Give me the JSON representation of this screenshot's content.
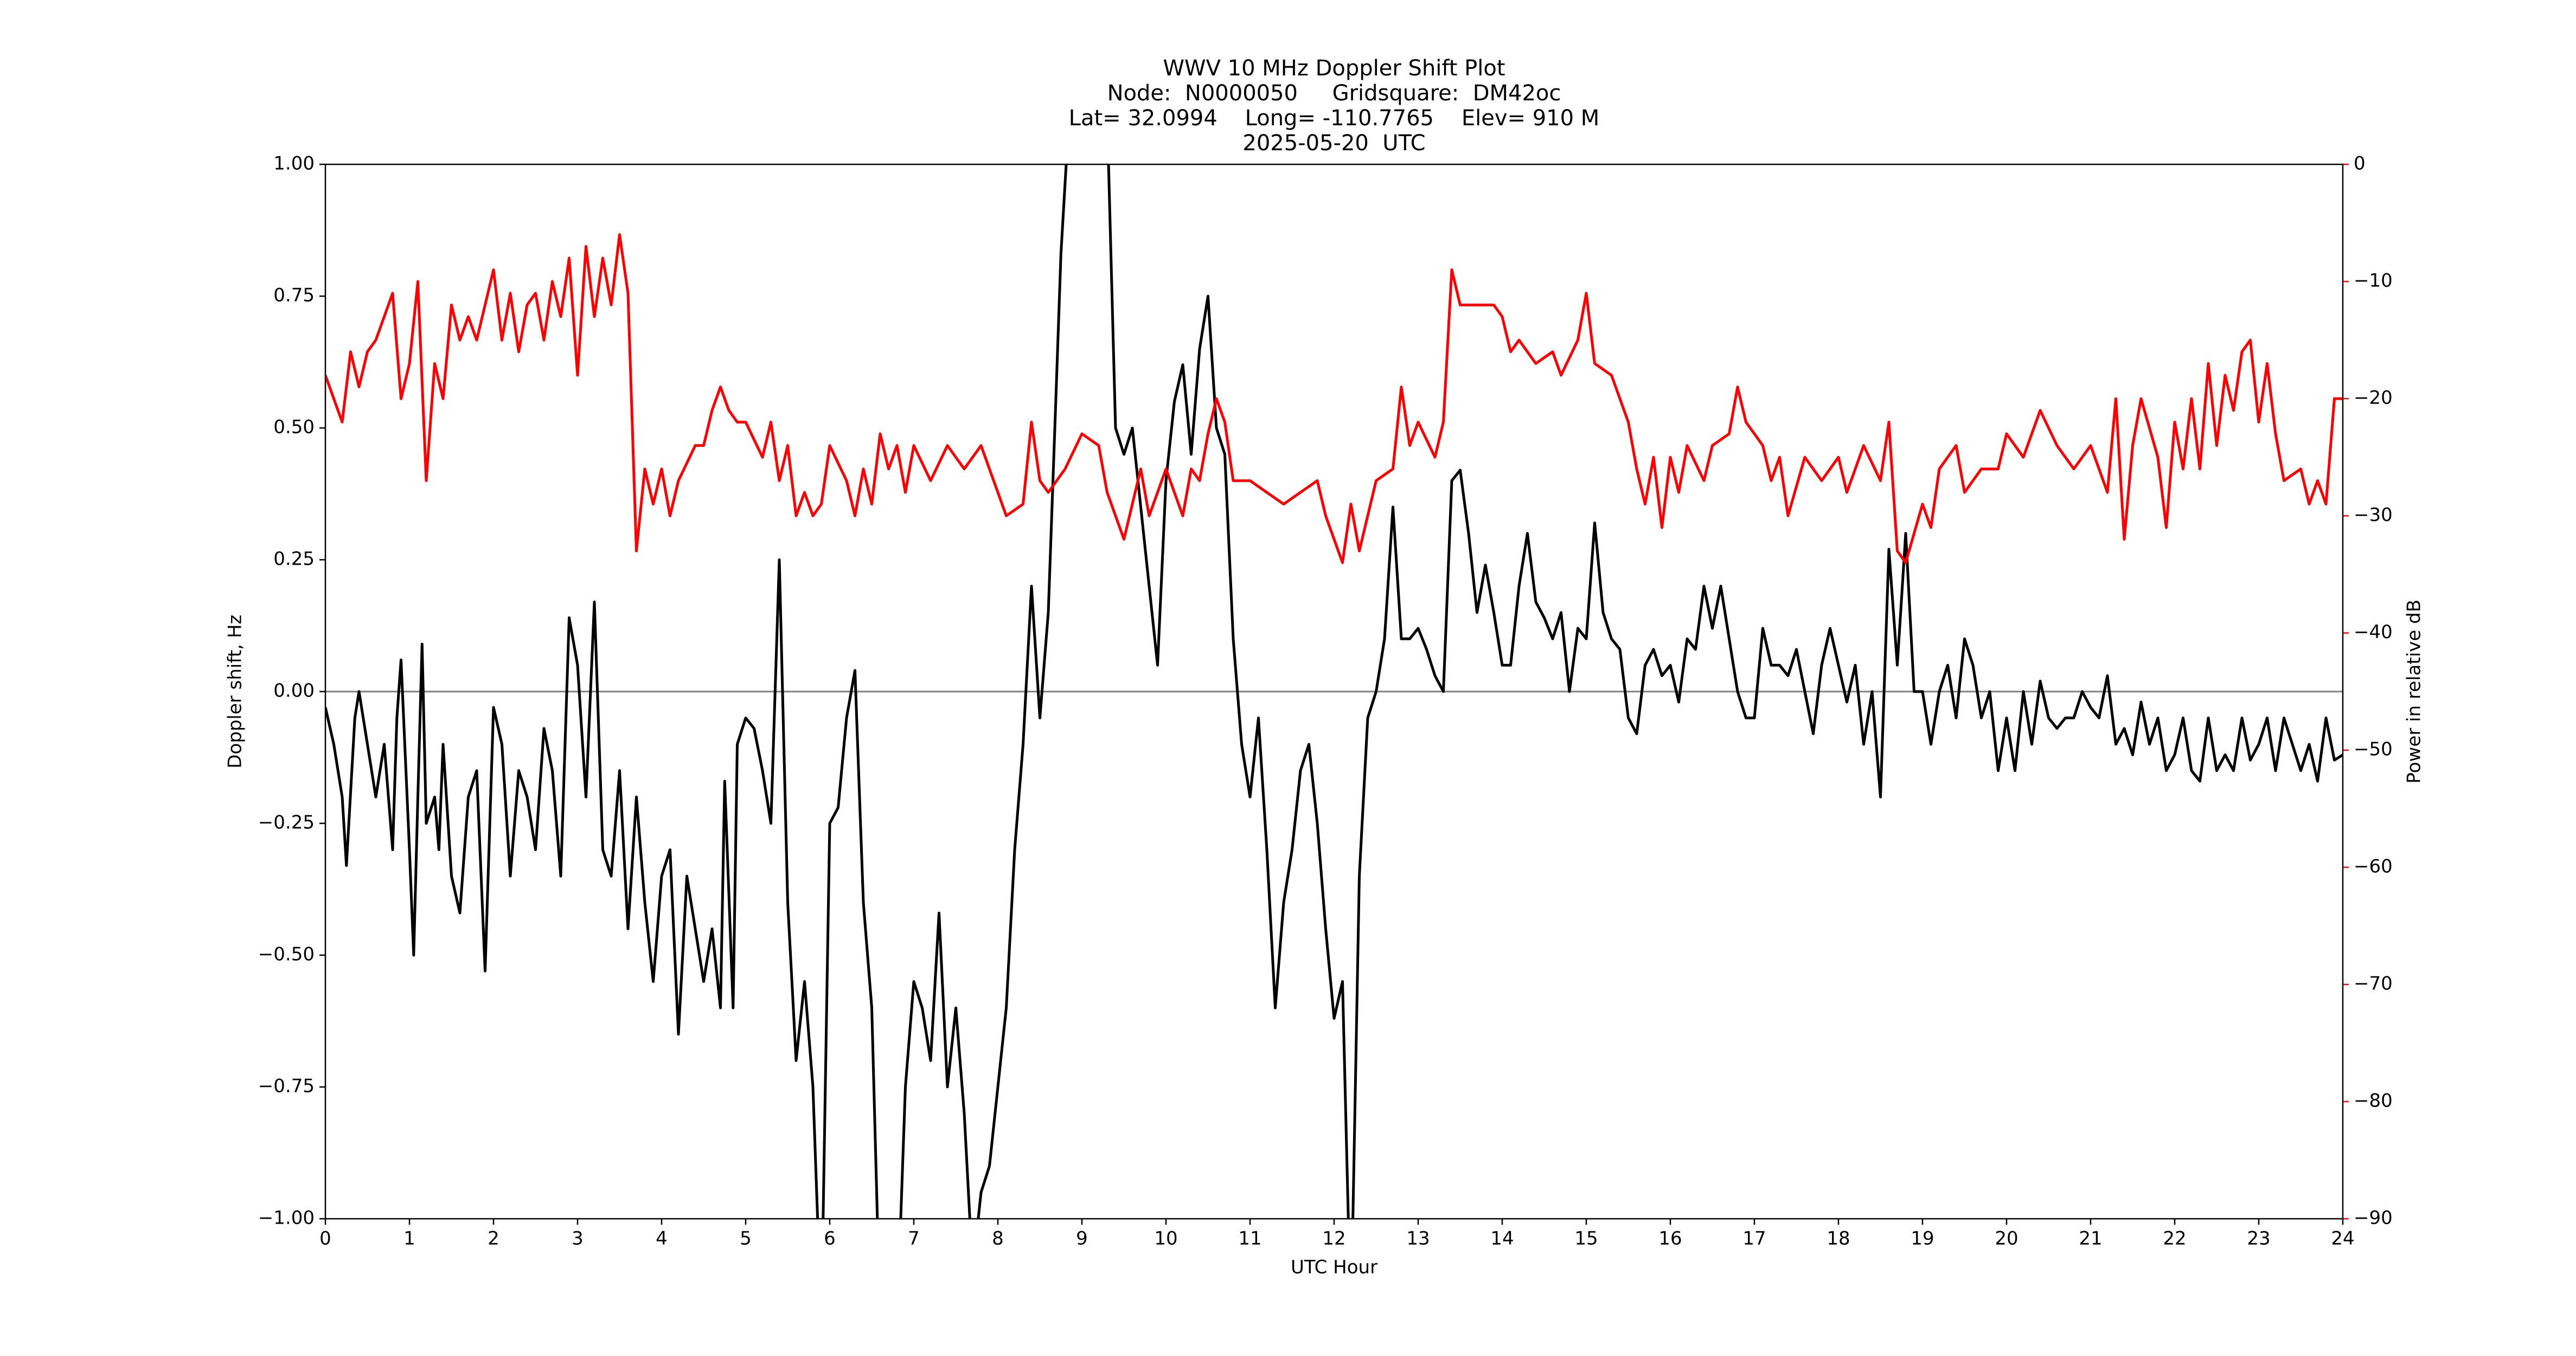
{
  "chart_data": {
    "type": "line",
    "title": [
      "WWV 10 MHz Doppler Shift Plot",
      "Node:  N0000050     Gridsquare:  DM42oc",
      "Lat= 32.0994    Long= -110.7765    Elev= 910 M",
      "2025-05-20  UTC"
    ],
    "x_label": "UTC Hour",
    "y_label": "Doppler shift, Hz",
    "y2_label": "Power in relative dB",
    "xlim": [
      0,
      24
    ],
    "xticks": [
      0,
      1,
      2,
      3,
      4,
      5,
      6,
      7,
      8,
      9,
      10,
      11,
      12,
      13,
      14,
      15,
      16,
      17,
      18,
      19,
      20,
      21,
      22,
      23,
      24
    ],
    "ylim": [
      -1,
      1
    ],
    "yticks": [
      {
        "value": -1,
        "label": "−1.00"
      },
      {
        "value": -0.75,
        "label": "−0.75"
      },
      {
        "value": -0.5,
        "label": "−0.50"
      },
      {
        "value": -0.25,
        "label": "−0.25"
      },
      {
        "value": 0,
        "label": "0.00"
      },
      {
        "value": 0.25,
        "label": "0.25"
      },
      {
        "value": 0.5,
        "label": "0.50"
      },
      {
        "value": 0.75,
        "label": "0.75"
      },
      {
        "value": 1,
        "label": "1.00"
      }
    ],
    "y2lim": [
      -90,
      0
    ],
    "y2ticks": [
      {
        "value": -90,
        "label": "−90"
      },
      {
        "value": -80,
        "label": "−80"
      },
      {
        "value": -70,
        "label": "−70"
      },
      {
        "value": -60,
        "label": "−60"
      },
      {
        "value": -50,
        "label": "−50"
      },
      {
        "value": -40,
        "label": "−40"
      },
      {
        "value": -30,
        "label": "−30"
      },
      {
        "value": -20,
        "label": "−20"
      },
      {
        "value": -10,
        "label": "−10"
      },
      0
    ],
    "y2_color": "#ff0000",
    "hline": 0,
    "series": [
      {
        "name": "Doppler shift",
        "color": "#000000",
        "axis": "y",
        "x": [
          0,
          0.1,
          0.2,
          0.25,
          0.35,
          0.4,
          0.5,
          0.6,
          0.7,
          0.8,
          0.85,
          0.9,
          1.0,
          1.05,
          1.1,
          1.15,
          1.2,
          1.3,
          1.35,
          1.4,
          1.5,
          1.6,
          1.7,
          1.8,
          1.9,
          2.0,
          2.1,
          2.2,
          2.3,
          2.4,
          2.5,
          2.6,
          2.7,
          2.8,
          2.9,
          3.0,
          3.1,
          3.2,
          3.3,
          3.4,
          3.5,
          3.6,
          3.7,
          3.8,
          3.9,
          4.0,
          4.1,
          4.2,
          4.3,
          4.4,
          4.5,
          4.6,
          4.7,
          4.75,
          4.85,
          4.9,
          5.0,
          5.1,
          5.2,
          5.3,
          5.4,
          5.5,
          5.6,
          5.7,
          5.8,
          5.9,
          6.0,
          6.1,
          6.2,
          6.3,
          6.4,
          6.5,
          6.6,
          6.8,
          6.9,
          7.0,
          7.1,
          7.2,
          7.3,
          7.4,
          7.5,
          7.6,
          7.7,
          7.8,
          7.9,
          8.0,
          8.1,
          8.2,
          8.3,
          8.4,
          8.5,
          8.6,
          8.7,
          8.75,
          8.85,
          9.0,
          9.3,
          9.4,
          9.5,
          9.6,
          9.7,
          9.8,
          9.9,
          10.0,
          10.1,
          10.2,
          10.3,
          10.4,
          10.5,
          10.6,
          10.7,
          10.8,
          10.9,
          11.0,
          11.1,
          11.2,
          11.3,
          11.4,
          11.5,
          11.6,
          11.7,
          11.8,
          11.9,
          12.0,
          12.1,
          12.2,
          12.3,
          12.4,
          12.5,
          12.6,
          12.7,
          12.8,
          12.9,
          13.0,
          13.1,
          13.2,
          13.3,
          13.4,
          13.5,
          13.6,
          13.7,
          13.8,
          13.9,
          14.0,
          14.1,
          14.2,
          14.3,
          14.4,
          14.5,
          14.6,
          14.7,
          14.8,
          14.9,
          15.0,
          15.1,
          15.2,
          15.3,
          15.4,
          15.5,
          15.6,
          15.7,
          15.8,
          15.9,
          16.0,
          16.1,
          16.2,
          16.3,
          16.4,
          16.5,
          16.6,
          16.7,
          16.8,
          16.9,
          17.0,
          17.1,
          17.2,
          17.3,
          17.4,
          17.5,
          17.6,
          17.7,
          17.8,
          17.9,
          18.0,
          18.1,
          18.2,
          18.3,
          18.4,
          18.5,
          18.6,
          18.7,
          18.8,
          18.9,
          19.0,
          19.1,
          19.2,
          19.3,
          19.4,
          19.5,
          19.6,
          19.7,
          19.8,
          19.9,
          20.0,
          20.1,
          20.2,
          20.3,
          20.4,
          20.5,
          20.6,
          20.7,
          20.8,
          20.9,
          21.0,
          21.1,
          21.2,
          21.3,
          21.4,
          21.5,
          21.6,
          21.7,
          21.8,
          21.9,
          22.0,
          22.1,
          22.2,
          22.3,
          22.4,
          22.5,
          22.6,
          22.7,
          22.8,
          22.9,
          23.0,
          23.1,
          23.2,
          23.3,
          23.4,
          23.5,
          23.6,
          23.7,
          23.8,
          23.9,
          24.0
        ],
        "values": [
          -0.03,
          -0.1,
          -0.2,
          -0.33,
          -0.05,
          0.0,
          -0.1,
          -0.2,
          -0.1,
          -0.3,
          -0.05,
          0.06,
          -0.3,
          -0.5,
          -0.2,
          0.09,
          -0.25,
          -0.2,
          -0.3,
          -0.1,
          -0.35,
          -0.42,
          -0.2,
          -0.15,
          -0.53,
          -0.03,
          -0.1,
          -0.35,
          -0.15,
          -0.2,
          -0.3,
          -0.07,
          -0.15,
          -0.35,
          0.14,
          0.05,
          -0.2,
          0.17,
          -0.3,
          -0.35,
          -0.15,
          -0.45,
          -0.2,
          -0.4,
          -0.55,
          -0.35,
          -0.3,
          -0.65,
          -0.35,
          -0.45,
          -0.55,
          -0.45,
          -0.6,
          -0.17,
          -0.6,
          -0.1,
          -0.05,
          -0.07,
          -0.15,
          -0.25,
          0.25,
          -0.4,
          -0.7,
          -0.55,
          -0.75,
          -1.2,
          -0.25,
          -0.22,
          -0.05,
          0.04,
          -0.4,
          -0.6,
          -1.2,
          -1.2,
          -0.75,
          -0.55,
          -0.6,
          -0.7,
          -0.42,
          -0.75,
          -0.6,
          -0.8,
          -1.1,
          -0.95,
          -0.9,
          -0.75,
          -0.6,
          -0.3,
          -0.1,
          0.2,
          -0.05,
          0.15,
          0.6,
          0.83,
          1.1,
          1.2,
          1.1,
          0.5,
          0.45,
          0.5,
          0.35,
          0.2,
          0.05,
          0.4,
          0.55,
          0.62,
          0.45,
          0.65,
          0.75,
          0.5,
          0.45,
          0.1,
          -0.1,
          -0.2,
          -0.05,
          -0.3,
          -0.6,
          -0.4,
          -0.3,
          -0.15,
          -0.1,
          -0.25,
          -0.45,
          -0.62,
          -0.55,
          -1.2,
          -0.35,
          -0.05,
          0.0,
          0.1,
          0.35,
          0.1,
          0.1,
          0.12,
          0.08,
          0.03,
          0.0,
          0.4,
          0.42,
          0.3,
          0.15,
          0.24,
          0.15,
          0.05,
          0.05,
          0.2,
          0.3,
          0.17,
          0.14,
          0.1,
          0.15,
          0.0,
          0.12,
          0.1,
          0.32,
          0.15,
          0.1,
          0.08,
          -0.05,
          -0.08,
          0.05,
          0.08,
          0.03,
          0.05,
          -0.02,
          0.1,
          0.08,
          0.2,
          0.12,
          0.2,
          0.1,
          0.0,
          -0.05,
          -0.05,
          0.12,
          0.05,
          0.05,
          0.03,
          0.08,
          0.0,
          -0.08,
          0.05,
          0.12,
          0.05,
          -0.02,
          0.05,
          -0.1,
          0.0,
          -0.2,
          0.27,
          0.05,
          0.3,
          0.0,
          0.0,
          -0.1,
          0.0,
          0.05,
          -0.05,
          0.1,
          0.05,
          -0.05,
          0.0,
          -0.15,
          -0.05,
          -0.15,
          0.0,
          -0.1,
          0.02,
          -0.05,
          -0.07,
          -0.05,
          -0.05,
          0.0,
          -0.03,
          -0.05,
          0.03,
          -0.1,
          -0.07,
          -0.12,
          -0.02,
          -0.1,
          -0.05,
          -0.15,
          -0.12,
          -0.05,
          -0.15,
          -0.17,
          -0.05,
          -0.15,
          -0.12,
          -0.15,
          -0.05,
          -0.13,
          -0.1,
          -0.05,
          -0.15,
          -0.05,
          -0.1,
          -0.15,
          -0.1,
          -0.17,
          -0.05,
          -0.13,
          -0.12
        ]
      },
      {
        "name": "Power",
        "color": "#ff0000",
        "axis": "y2",
        "x": [
          0,
          0.2,
          0.3,
          0.4,
          0.5,
          0.6,
          0.7,
          0.8,
          0.9,
          1.0,
          1.1,
          1.2,
          1.3,
          1.4,
          1.5,
          1.6,
          1.7,
          1.8,
          1.9,
          2.0,
          2.1,
          2.2,
          2.3,
          2.4,
          2.5,
          2.6,
          2.7,
          2.8,
          2.9,
          3.0,
          3.1,
          3.2,
          3.3,
          3.4,
          3.5,
          3.6,
          3.7,
          3.8,
          3.9,
          4.0,
          4.1,
          4.2,
          4.4,
          4.5,
          4.6,
          4.7,
          4.8,
          4.9,
          5.0,
          5.2,
          5.3,
          5.4,
          5.5,
          5.6,
          5.7,
          5.8,
          5.9,
          6.0,
          6.2,
          6.3,
          6.4,
          6.5,
          6.6,
          6.7,
          6.8,
          6.9,
          7.0,
          7.2,
          7.4,
          7.6,
          7.8,
          8.0,
          8.1,
          8.3,
          8.4,
          8.5,
          8.6,
          8.8,
          9.0,
          9.2,
          9.3,
          9.5,
          9.7,
          9.8,
          9.9,
          10.0,
          10.1,
          10.2,
          10.3,
          10.4,
          10.5,
          10.6,
          10.7,
          10.8,
          11.0,
          11.2,
          11.4,
          11.6,
          11.8,
          11.9,
          12.1,
          12.2,
          12.3,
          12.5,
          12.7,
          12.8,
          12.9,
          13.0,
          13.2,
          13.3,
          13.4,
          13.5,
          13.7,
          13.9,
          14.0,
          14.1,
          14.2,
          14.4,
          14.6,
          14.7,
          14.9,
          15.0,
          15.1,
          15.3,
          15.5,
          15.6,
          15.7,
          15.8,
          15.9,
          16.0,
          16.1,
          16.2,
          16.4,
          16.5,
          16.7,
          16.8,
          16.9,
          17.1,
          17.2,
          17.3,
          17.4,
          17.6,
          17.8,
          18.0,
          18.1,
          18.3,
          18.5,
          18.6,
          18.7,
          18.8,
          19.0,
          19.1,
          19.2,
          19.4,
          19.5,
          19.7,
          19.9,
          20.0,
          20.2,
          20.4,
          20.6,
          20.8,
          21.0,
          21.2,
          21.3,
          21.4,
          21.5,
          21.6,
          21.8,
          21.9,
          22.0,
          22.1,
          22.2,
          22.3,
          22.4,
          22.5,
          22.6,
          22.7,
          22.8,
          22.9,
          23.0,
          23.1,
          23.2,
          23.3,
          23.5,
          23.6,
          23.7,
          23.8,
          23.9,
          24.0
        ],
        "values": [
          -18,
          -22,
          -16,
          -19,
          -16,
          -15,
          -13,
          -11,
          -20,
          -17,
          -10,
          -27,
          -17,
          -20,
          -12,
          -15,
          -13,
          -15,
          -12,
          -9,
          -15,
          -11,
          -16,
          -12,
          -11,
          -15,
          -10,
          -13,
          -8,
          -18,
          -7,
          -13,
          -8,
          -12,
          -6,
          -11,
          -33,
          -26,
          -29,
          -26,
          -30,
          -27,
          -24,
          -24,
          -21,
          -19,
          -21,
          -22,
          -22,
          -25,
          -22,
          -27,
          -24,
          -30,
          -28,
          -30,
          -29,
          -24,
          -27,
          -30,
          -26,
          -29,
          -23,
          -26,
          -24,
          -28,
          -24,
          -27,
          -24,
          -26,
          -24,
          -28,
          -30,
          -29,
          -22,
          -27,
          -28,
          -26,
          -23,
          -24,
          -28,
          -32,
          -26,
          -30,
          -28,
          -26,
          -28,
          -30,
          -26,
          -27,
          -23,
          -20,
          -22,
          -27,
          -27,
          -28,
          -29,
          -28,
          -27,
          -30,
          -34,
          -29,
          -33,
          -27,
          -26,
          -19,
          -24,
          -22,
          -25,
          -22,
          -9,
          -12,
          -12,
          -12,
          -13,
          -16,
          -15,
          -17,
          -16,
          -18,
          -15,
          -11,
          -17,
          -18,
          -22,
          -26,
          -29,
          -25,
          -31,
          -25,
          -28,
          -24,
          -27,
          -24,
          -23,
          -19,
          -22,
          -24,
          -27,
          -25,
          -30,
          -25,
          -27,
          -25,
          -28,
          -24,
          -27,
          -22,
          -33,
          -34,
          -29,
          -31,
          -26,
          -24,
          -28,
          -26,
          -26,
          -23,
          -25,
          -21,
          -24,
          -26,
          -24,
          -28,
          -20,
          -32,
          -24,
          -20,
          -25,
          -31,
          -22,
          -26,
          -20,
          -26,
          -17,
          -24,
          -18,
          -21,
          -16,
          -15,
          -22,
          -17,
          -23,
          -27,
          -26,
          -29,
          -27,
          -29,
          -20,
          -20
        ]
      }
    ]
  }
}
